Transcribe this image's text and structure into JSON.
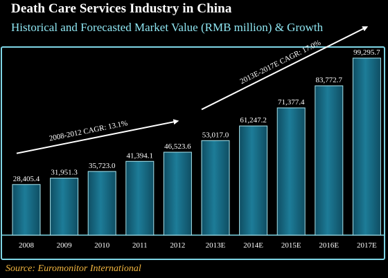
{
  "title": "Death Care Services Industry in China",
  "subtitle": "Historical and Forecasted Market Value (RMB million) & Growth",
  "source": "Source: Euromonitor International",
  "colors": {
    "background": "#000000",
    "panel_border": "#7fd6e6",
    "bar_fill": "#1a6f8a",
    "bar_stroke": "#a9e6ef",
    "annotation": "#ffffff",
    "subtitle": "#8fe6f2",
    "source": "#f2b640"
  },
  "chart_data": {
    "type": "bar",
    "title": "Death Care Services Industry in China",
    "subtitle": "Historical and Forecasted Market Value (RMB million) & Growth",
    "categories": [
      "2008",
      "2009",
      "2010",
      "2011",
      "2012",
      "2013E",
      "2014E",
      "2015E",
      "2016E",
      "2017E"
    ],
    "values": [
      28405.4,
      31951.3,
      35723.0,
      41394.1,
      46523.6,
      53017.0,
      61247.2,
      71377.4,
      83772.7,
      99295.7
    ],
    "value_labels": [
      "28,405.4",
      "31,951.3",
      "35,723.0",
      "41,394.1",
      "46,523.6",
      "53,017.0",
      "61,247.2",
      "71,377.4",
      "83,772.7",
      "99,295.7"
    ],
    "ylim": [
      0,
      99295.7
    ],
    "grid": false,
    "annotations": [
      {
        "text": "2008-2012 CAGR: 13.1%",
        "from_category": "2008",
        "to_category": "2012"
      },
      {
        "text": "2013E-2017E CAGR: 17.0%",
        "from_category": "2013E",
        "to_category": "2017E"
      }
    ]
  }
}
